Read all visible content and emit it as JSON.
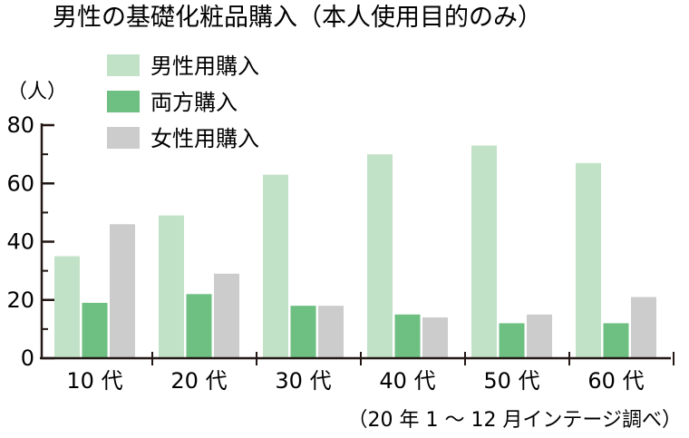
{
  "chart_data": {
    "type": "bar",
    "title": "男性の基礎化粧品購入（本人使用目的のみ）",
    "ylabel": "（人）",
    "xlabel": "",
    "categories": [
      "10 代",
      "20 代",
      "30 代",
      "40 代",
      "50 代",
      "60 代"
    ],
    "series": [
      {
        "name": "男性用購入",
        "values": [
          35,
          49,
          63,
          70,
          73,
          67
        ],
        "color": "#c2e2c8"
      },
      {
        "name": "両方購入",
        "values": [
          19,
          22,
          18,
          15,
          12,
          12
        ],
        "color": "#6dbf82"
      },
      {
        "name": "女性用購入",
        "values": [
          46,
          29,
          18,
          14,
          15,
          21
        ],
        "color": "#cccccc"
      }
    ],
    "ylim": [
      0,
      80
    ],
    "yticks": [
      0,
      20,
      40,
      60,
      80
    ],
    "grid": false,
    "legend": "top-left",
    "source": "（20 年 1 〜 12 月インテージ調べ）"
  }
}
